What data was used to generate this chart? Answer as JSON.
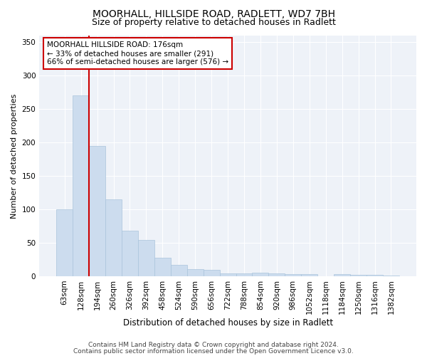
{
  "title1": "MOORHALL, HILLSIDE ROAD, RADLETT, WD7 7BH",
  "title2": "Size of property relative to detached houses in Radlett",
  "xlabel": "Distribution of detached houses by size in Radlett",
  "ylabel": "Number of detached properties",
  "categories": [
    "63sqm",
    "128sqm",
    "194sqm",
    "260sqm",
    "326sqm",
    "392sqm",
    "458sqm",
    "524sqm",
    "590sqm",
    "656sqm",
    "722sqm",
    "788sqm",
    "854sqm",
    "920sqm",
    "986sqm",
    "1052sqm",
    "1118sqm",
    "1184sqm",
    "1250sqm",
    "1316sqm",
    "1382sqm"
  ],
  "values": [
    100,
    270,
    195,
    115,
    68,
    54,
    28,
    17,
    10,
    9,
    4,
    4,
    5,
    4,
    3,
    3,
    0,
    3,
    2,
    2,
    1
  ],
  "bar_color": "#ccdcee",
  "bar_edge_color": "#aac4dc",
  "red_line_index": 2,
  "ylim": [
    0,
    360
  ],
  "yticks": [
    0,
    50,
    100,
    150,
    200,
    250,
    300,
    350
  ],
  "annotation_title": "MOORHALL HILLSIDE ROAD: 176sqm",
  "annotation_line1": "← 33% of detached houses are smaller (291)",
  "annotation_line2": "66% of semi-detached houses are larger (576) →",
  "annotation_box_color": "#ffffff",
  "annotation_box_edge_color": "#cc0000",
  "footer1": "Contains HM Land Registry data © Crown copyright and database right 2024.",
  "footer2": "Contains public sector information licensed under the Open Government Licence v3.0.",
  "background_color": "#ffffff",
  "plot_bg_color": "#eef2f8",
  "title1_fontsize": 10,
  "title2_fontsize": 9,
  "xlabel_fontsize": 8.5,
  "ylabel_fontsize": 8,
  "tick_fontsize": 7.5,
  "annot_fontsize": 7.5,
  "footer_fontsize": 6.5
}
